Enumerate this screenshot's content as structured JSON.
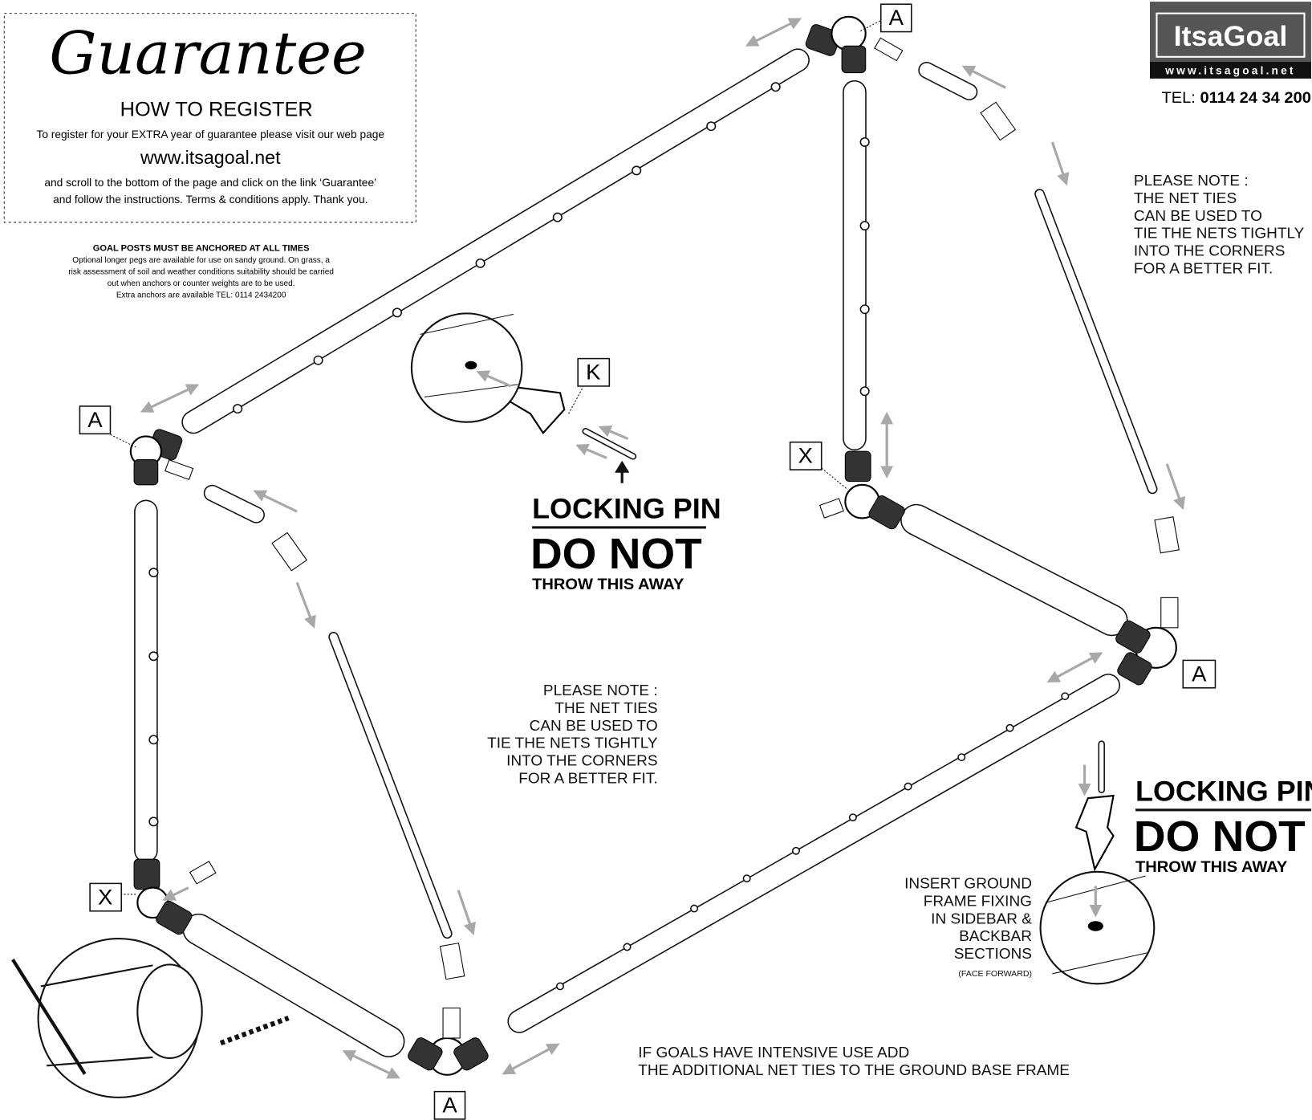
{
  "guarantee": {
    "title": "Guarantee",
    "subtitle": "HOW TO REGISTER",
    "line1": "To register for your EXTRA year of guarantee please visit our web page",
    "url": "www.itsagoal.net",
    "line2": "and scroll to the bottom of the page and click on the link ‘Guarantee’",
    "line3": "and follow the instructions. Terms & conditions apply. Thank you."
  },
  "anchor_notice": {
    "heading": "GOAL POSTS MUST BE ANCHORED AT ALL TIMES",
    "lines": [
      "Optional longer pegs are available for use on sandy ground. On grass, a",
      "risk assessment of soil and weather conditions suitability should be carried",
      "out when anchors or counter weights are to be used.",
      "Extra anchors are available TEL: 0114 2434200"
    ]
  },
  "logo": {
    "name": "ItsaGoal",
    "url": "www.itsagoal.net",
    "tel_label": "TEL:",
    "tel_number": "0114 24 34 200"
  },
  "note_right": {
    "lines": [
      "PLEASE NOTE :",
      "THE NET TIES",
      "CAN BE USED TO",
      "TIE THE NETS TIGHTLY",
      "INTO THE CORNERS",
      "FOR A BETTER FIT."
    ]
  },
  "note_middle": {
    "lines": [
      "PLEASE NOTE :",
      "THE NET TIES",
      "CAN BE USED TO",
      "TIE THE NETS TIGHTLY",
      "INTO THE CORNERS",
      "FOR A BETTER FIT."
    ]
  },
  "locking_pin_top": {
    "title": "LOCKING PIN",
    "warning": "DO NOT",
    "sub": "THROW THIS AWAY"
  },
  "locking_pin_right": {
    "title": "LOCKING PIN",
    "warning": "DO NOT",
    "sub": "THROW THIS AWAY"
  },
  "insert_note": {
    "lines": [
      "INSERT GROUND",
      "FRAME FIXING",
      "IN SIDEBAR &",
      "BACKBAR",
      "SECTIONS"
    ],
    "small": "(FACE FORWARD)"
  },
  "bottom_note": {
    "lines": [
      "IF GOALS HAVE INTENSIVE USE ADD",
      "THE ADDITIONAL NET TIES TO THE GROUND BASE FRAME"
    ]
  },
  "part_labels": [
    "A",
    "A",
    "X",
    "K",
    "A",
    "X",
    "A"
  ]
}
